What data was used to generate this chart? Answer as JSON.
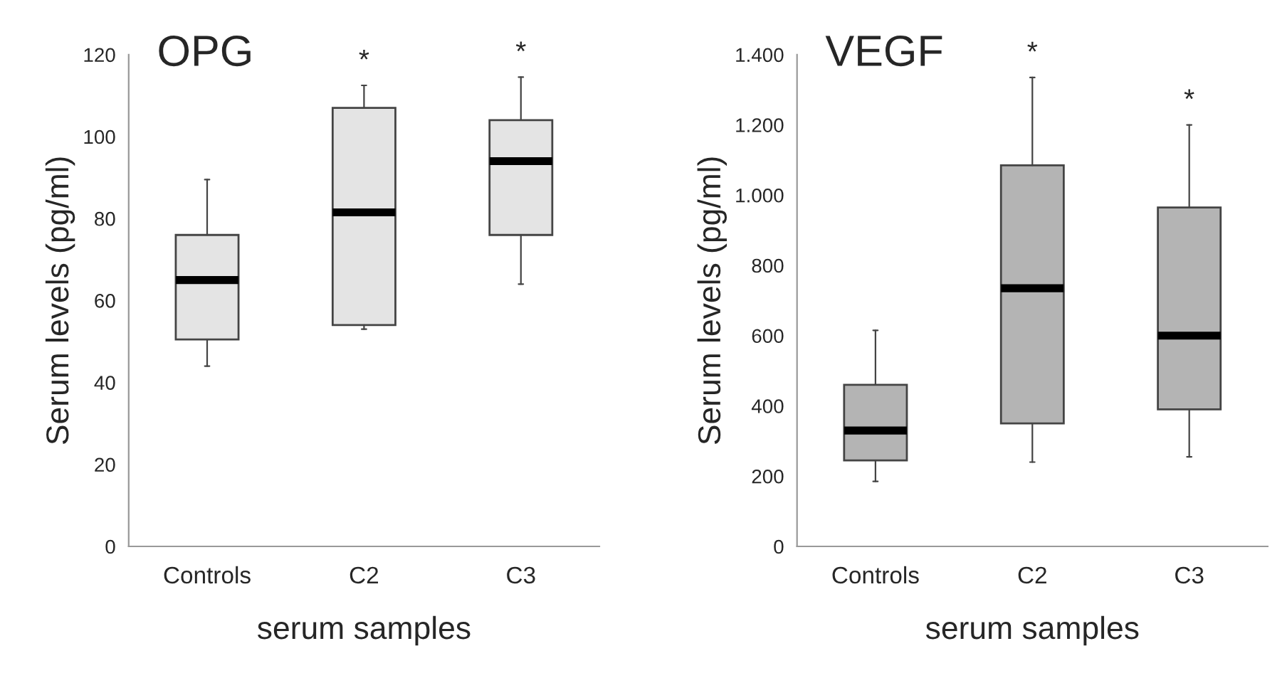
{
  "chart_data": [
    {
      "type": "box",
      "title": "OPG",
      "xlabel": "serum samples",
      "ylabel": "Serum levels (pg/ml)",
      "categories": [
        "Controls",
        "C2",
        "C3"
      ],
      "color": "#e4e4e4",
      "boxes": [
        {
          "low": 44,
          "q1": 50.5,
          "median": 65,
          "q3": 76,
          "high": 89.5
        },
        {
          "low": 53,
          "q1": 54,
          "median": 81.5,
          "q3": 107,
          "high": 112.5
        },
        {
          "low": 64,
          "q1": 76,
          "median": 94,
          "q3": 104,
          "high": 114.5
        }
      ],
      "ylim": [
        0,
        120
      ],
      "yticks": [
        0,
        20,
        40,
        60,
        80,
        100,
        120
      ],
      "grid": false,
      "annotations": [
        "*",
        "*"
      ]
    },
    {
      "type": "box",
      "title": "VEGF",
      "xlabel": "serum samples",
      "ylabel": "Serum levels (pg/ml)",
      "categories": [
        "Controls",
        "C2",
        "C3"
      ],
      "color": "#b4b4b4",
      "boxes": [
        {
          "low": 185,
          "q1": 245,
          "median": 330,
          "q3": 460,
          "high": 615
        },
        {
          "low": 240,
          "q1": 350,
          "median": 735,
          "q3": 1085,
          "high": 1335
        },
        {
          "low": 255,
          "q1": 390,
          "median": 600,
          "q3": 965,
          "high": 1200
        }
      ],
      "ylim": [
        0,
        1400
      ],
      "yticks": [
        0,
        200,
        400,
        600,
        800,
        {
          "value": 1000,
          "label": "1.000"
        },
        {
          "value": 1200,
          "label": "1.200"
        },
        {
          "value": 1400,
          "label": "1.400"
        }
      ],
      "grid": false,
      "annotations": [
        "*",
        "*"
      ]
    }
  ]
}
